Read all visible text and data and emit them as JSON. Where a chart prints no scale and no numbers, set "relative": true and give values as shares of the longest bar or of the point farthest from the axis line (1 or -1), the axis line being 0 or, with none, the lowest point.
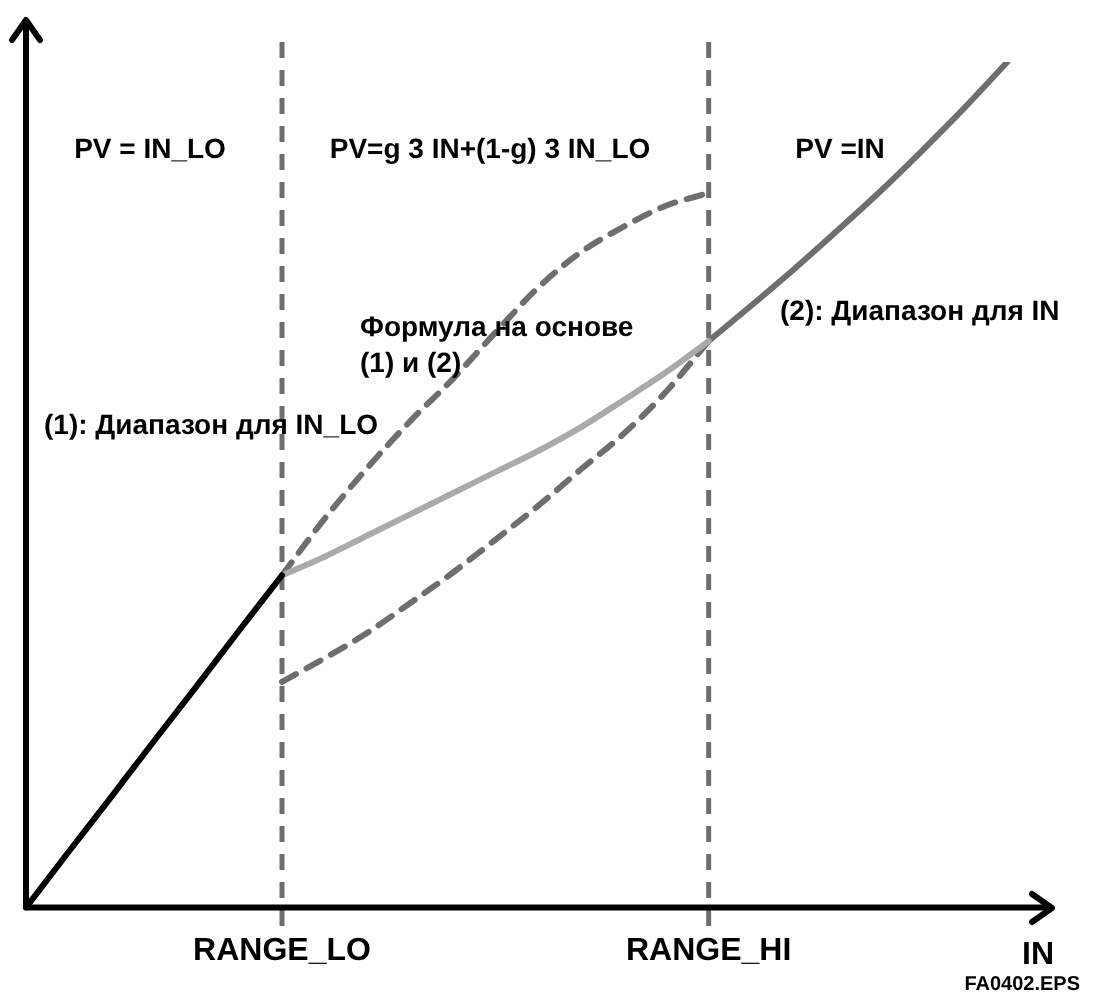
{
  "chart_data": {
    "type": "line",
    "relative": true,
    "xlabel": "IN",
    "categories": [
      null,
      null,
      null,
      null,
      null,
      null,
      "RANGE_LO",
      null,
      null,
      null,
      null,
      null,
      null,
      null,
      null,
      null,
      "RANGE_HI",
      null,
      null,
      null,
      null,
      null,
      null,
      null,
      null
    ],
    "grid": false,
    "legend": false,
    "marker": "none",
    "series": [
      {
        "color": "#000000",
        "values": [
          0,
          0.066,
          0.131,
          0.197,
          0.262,
          0.328,
          0.393,
          null,
          null,
          null,
          null,
          null,
          null,
          null,
          null,
          null,
          null,
          null,
          null,
          null,
          null,
          null,
          null,
          null,
          null
        ]
      },
      {
        "color": "#aaaaaa",
        "values": [
          null,
          null,
          null,
          null,
          null,
          null,
          0.393,
          0.415,
          0.44,
          0.465,
          0.49,
          0.515,
          0.54,
          0.568,
          0.6,
          0.633,
          0.67,
          null,
          null,
          null,
          null,
          null,
          null,
          null,
          null
        ]
      },
      {
        "color": "#6e6e6e",
        "values": [
          null,
          null,
          null,
          null,
          null,
          null,
          null,
          null,
          null,
          null,
          null,
          null,
          null,
          null,
          null,
          null,
          0.67,
          0.712,
          0.755,
          0.8,
          0.846,
          0.895,
          0.946,
          1,
          null
        ]
      },
      {
        "color": "#6e6e6e",
        "line_style": "dashed",
        "values": [
          null,
          null,
          null,
          null,
          null,
          null,
          0.393,
          0.46,
          0.52,
          0.575,
          0.625,
          0.68,
          0.733,
          0.775,
          0.805,
          0.83,
          0.845,
          null,
          null,
          null,
          null,
          null,
          null,
          null,
          null
        ]
      },
      {
        "color": "#6e6e6e",
        "line_style": "dashed",
        "values": [
          null,
          null,
          null,
          null,
          null,
          null,
          0.267,
          0.295,
          0.325,
          0.36,
          0.396,
          0.435,
          0.475,
          0.518,
          0.56,
          0.61,
          0.67,
          null,
          null,
          null,
          null,
          null,
          null,
          null,
          null
        ]
      }
    ],
    "ref_lines": [
      {
        "axis": "x",
        "value": "RANGE_LO",
        "color": "#6e6e6e",
        "line_style": "dashed"
      },
      {
        "axis": "x",
        "value": "RANGE_HI",
        "color": "#6e6e6e",
        "line_style": "dashed"
      }
    ],
    "annotations": [
      "PV = IN_LO",
      "PV=g 3 IN+(1-g) 3 IN_LO",
      "PV =IN",
      "(1): Диапазон для IN_LO",
      "Формула на основе\n(1) и (2)",
      "(2): Диапазон для IN",
      "FA0402.EPS"
    ]
  }
}
